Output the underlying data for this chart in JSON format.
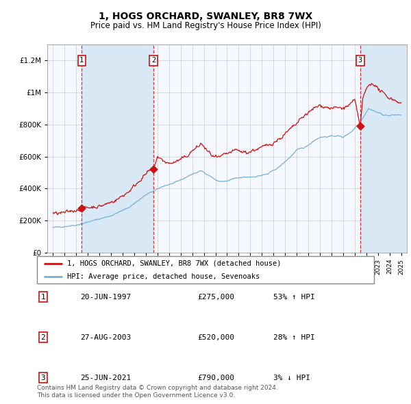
{
  "title": "1, HOGS ORCHARD, SWANLEY, BR8 7WX",
  "subtitle": "Price paid vs. HM Land Registry's House Price Index (HPI)",
  "legend_line1": "1, HOGS ORCHARD, SWANLEY, BR8 7WX (detached house)",
  "legend_line2": "HPI: Average price, detached house, Sevenoaks",
  "transactions": [
    {
      "num": 1,
      "date": "20-JUN-1997",
      "price": 275000,
      "pct": "53%",
      "dir": "↑"
    },
    {
      "num": 2,
      "date": "27-AUG-2003",
      "price": 520000,
      "pct": "28%",
      "dir": "↑"
    },
    {
      "num": 3,
      "date": "25-JUN-2021",
      "price": 790000,
      "pct": "3%",
      "dir": "↓"
    }
  ],
  "transaction_years": [
    1997.47,
    2003.65,
    2021.48
  ],
  "transaction_prices": [
    275000,
    520000,
    790000
  ],
  "footer": "Contains HM Land Registry data © Crown copyright and database right 2024.\nThis data is licensed under the Open Government Licence v3.0.",
  "hpi_color": "#7aaed6",
  "price_color": "#cc1111",
  "chart_bg": "#f5f8ff",
  "shade_color": "#d8e8f5",
  "ylim": [
    0,
    1300000
  ],
  "xlim_start": 1994.5,
  "xlim_end": 2025.5,
  "hpi_anchors_x": [
    1995.0,
    1996.0,
    1997.0,
    1997.5,
    1998.5,
    2000.0,
    2001.5,
    2003.0,
    2004.0,
    2004.5,
    2005.5,
    2007.0,
    2007.8,
    2008.5,
    2009.2,
    2010.0,
    2010.5,
    2011.5,
    2012.5,
    2013.5,
    2014.5,
    2015.5,
    2016.0,
    2016.8,
    2017.5,
    2018.0,
    2018.8,
    2019.5,
    2020.0,
    2020.8,
    2021.5,
    2022.2,
    2022.8,
    2023.5,
    2024.0,
    2024.5,
    2025.0
  ],
  "hpi_anchors_y": [
    155000,
    163000,
    172000,
    180000,
    200000,
    230000,
    280000,
    360000,
    395000,
    415000,
    435000,
    490000,
    510000,
    480000,
    445000,
    445000,
    460000,
    470000,
    475000,
    490000,
    535000,
    600000,
    640000,
    660000,
    700000,
    720000,
    725000,
    730000,
    720000,
    760000,
    820000,
    900000,
    880000,
    860000,
    855000,
    860000,
    860000
  ],
  "price_anchors_x": [
    1995.0,
    1995.5,
    1996.0,
    1996.5,
    1997.0,
    1997.47,
    1997.8,
    1998.5,
    1999.0,
    1999.5,
    2000.0,
    2000.5,
    2001.0,
    2001.5,
    2002.0,
    2002.5,
    2003.0,
    2003.3,
    2003.65,
    2004.0,
    2004.3,
    2005.0,
    2005.5,
    2006.0,
    2006.5,
    2007.0,
    2007.3,
    2007.8,
    2008.2,
    2008.8,
    2009.3,
    2009.8,
    2010.3,
    2010.8,
    2011.2,
    2011.8,
    2012.3,
    2012.8,
    2013.3,
    2013.8,
    2014.3,
    2014.8,
    2015.3,
    2015.8,
    2016.2,
    2016.7,
    2017.0,
    2017.5,
    2018.0,
    2018.5,
    2019.0,
    2019.5,
    2020.0,
    2020.5,
    2021.0,
    2021.48,
    2021.7,
    2022.0,
    2022.3,
    2022.6,
    2022.9,
    2023.2,
    2023.5,
    2023.8,
    2024.2,
    2024.6,
    2025.0
  ],
  "price_anchors_y": [
    240000,
    245000,
    248000,
    258000,
    265000,
    275000,
    280000,
    285000,
    288000,
    300000,
    315000,
    330000,
    355000,
    380000,
    415000,
    455000,
    490000,
    510000,
    520000,
    600000,
    580000,
    555000,
    565000,
    580000,
    600000,
    635000,
    650000,
    680000,
    640000,
    600000,
    590000,
    610000,
    625000,
    640000,
    630000,
    625000,
    640000,
    650000,
    665000,
    680000,
    700000,
    725000,
    760000,
    790000,
    820000,
    860000,
    870000,
    900000,
    920000,
    910000,
    900000,
    905000,
    900000,
    920000,
    950000,
    790000,
    960000,
    1020000,
    1050000,
    1060000,
    1030000,
    1010000,
    990000,
    975000,
    960000,
    950000,
    930000
  ]
}
